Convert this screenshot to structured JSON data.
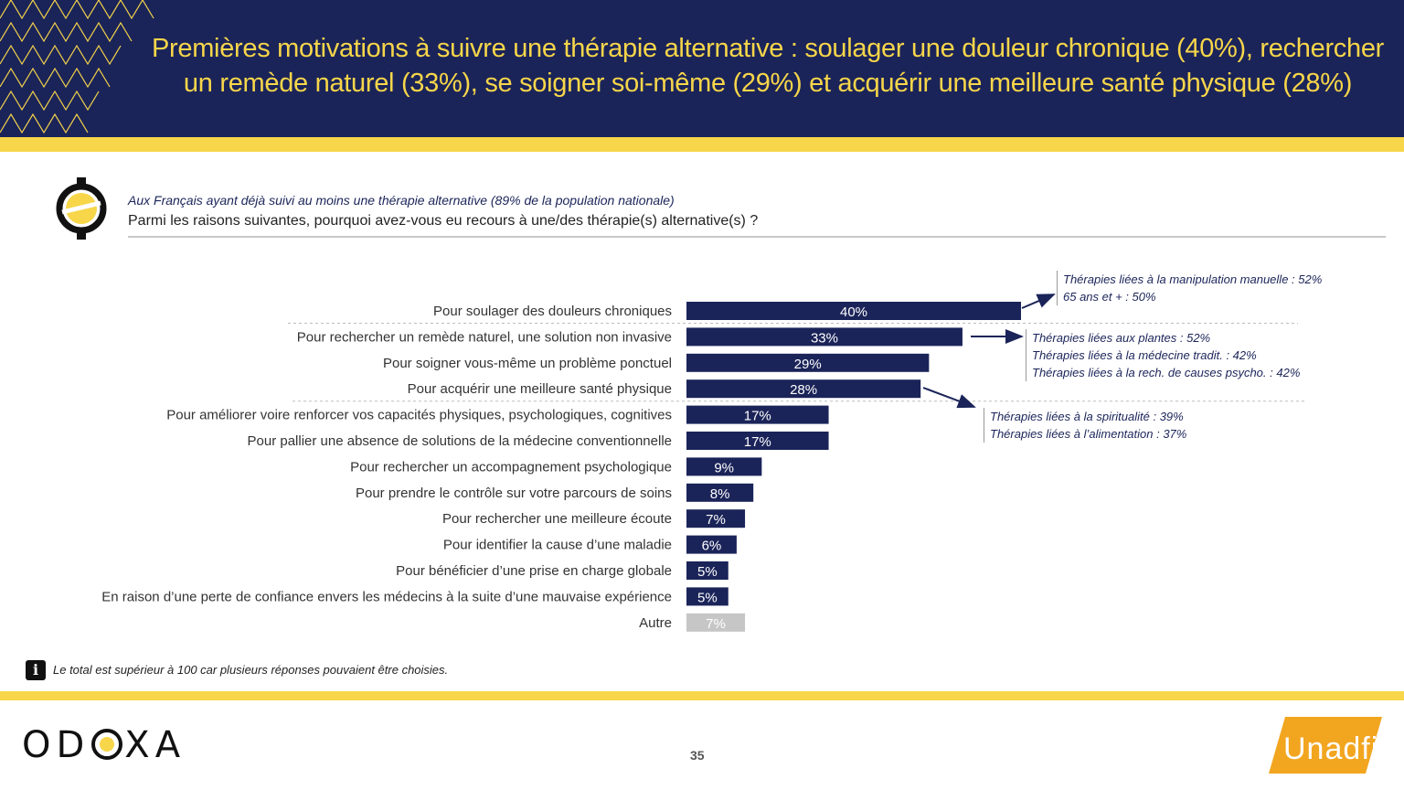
{
  "header": {
    "title_line1": "Premières motivations à suivre une thérapie alternative : soulager une douleur chronique (40%), rechercher",
    "title_line2": "un remède naturel (33%), se soigner soi-même (29%) et acquérir une meilleure santé physique (28%)"
  },
  "survey": {
    "population": "Aux Français ayant déjà suivi au moins une thérapie alternative (89% de la population nationale)",
    "question": "Parmi les raisons suivantes, pourquoi avez-vous eu recours à une/des thérapie(s) alternative(s) ?"
  },
  "chart_data": {
    "type": "bar",
    "orientation": "horizontal",
    "categories": [
      "Pour soulager des douleurs chroniques",
      "Pour rechercher un remède naturel, une solution non invasive",
      "Pour soigner vous-même un problème ponctuel",
      "Pour acquérir une meilleure santé physique",
      "Pour améliorer voire renforcer vos capacités physiques, psychologiques, cognitives",
      "Pour pallier une absence de solutions de la médecine conventionnelle",
      "Pour rechercher un accompagnement psychologique",
      "Pour prendre le contrôle sur votre parcours de soins",
      "Pour rechercher une meilleure écoute",
      "Pour identifier la cause d’une maladie",
      "Pour bénéficier d’une prise en charge globale",
      "En raison d’une perte de confiance envers les médecins à la suite d’une mauvaise expérience",
      "Autre"
    ],
    "values": [
      40,
      33,
      29,
      28,
      17,
      17,
      9,
      8,
      7,
      6,
      5,
      5,
      7
    ],
    "value_labels": [
      "40%",
      "33%",
      "29%",
      "28%",
      "17%",
      "17%",
      "9%",
      "8%",
      "7%",
      "6%",
      "5%",
      "5%",
      "7%"
    ],
    "unit": "%",
    "colors": {
      "main": "#1b2459",
      "other": "#c6c6c6"
    },
    "other_category_index": 12,
    "xlim": [
      0,
      40
    ],
    "annotations": [
      {
        "target_index": 0,
        "lines": [
          "Thérapies liées à la manipulation manuelle : 52%",
          "65 ans et + : 50%"
        ]
      },
      {
        "target_index": 1,
        "lines": [
          "Thérapies liées aux plantes : 52%",
          "Thérapies liées à la médecine tradit. : 42%",
          "Thérapies liées à la rech. de causes psycho. : 42%"
        ]
      },
      {
        "target_index": 3,
        "lines": [
          "Thérapies liées à la spiritualité : 39%",
          "Thérapies liées à l’alimentation : 37%"
        ]
      }
    ]
  },
  "footer": {
    "note": "Le total est supérieur à 100 car plusieurs réponses pouvaient être choisies.",
    "page_number": "35",
    "logo_left": "ODOXA",
    "logo_right": "Unadfi"
  }
}
